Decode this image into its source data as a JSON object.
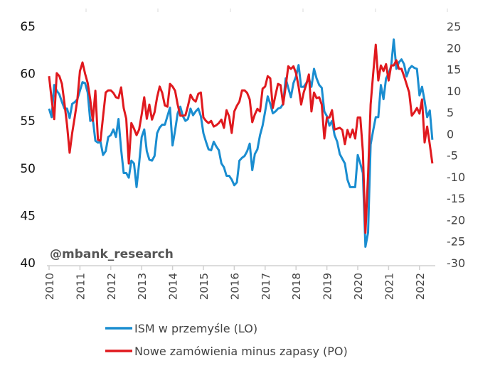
{
  "chart_data": {
    "type": "line",
    "title": "",
    "watermark": "@mbank_research",
    "x_start": "2010-01",
    "x_frequency": "monthly",
    "x_tick_labels": [
      "2010",
      "2011",
      "2012",
      "2013",
      "2014",
      "2015",
      "2016",
      "2017",
      "2018",
      "2019",
      "2020",
      "2021",
      "2022"
    ],
    "y_left": {
      "label": "",
      "ylim": [
        40,
        65
      ],
      "ticks": [
        "40",
        "45",
        "50",
        "55",
        "60",
        "65"
      ]
    },
    "y_right": {
      "label": "",
      "ylim": [
        -30,
        25
      ],
      "ticks": [
        "-30",
        "-25",
        "-20",
        "-15",
        "-10",
        "-5",
        "0",
        "5",
        "10",
        "15",
        "20",
        "25"
      ]
    },
    "grid": false,
    "legend_position": "bottom",
    "series": [
      {
        "name": "ISM w przemyśle (LO)",
        "axis": "left",
        "color": "#1a8dd0",
        "values": [
          56.3,
          55.4,
          58.8,
          58.2,
          57.8,
          57.0,
          56.3,
          56.3,
          55.3,
          56.8,
          57.0,
          57.3,
          58.2,
          59.1,
          59.0,
          58.0,
          55.0,
          55.2,
          52.9,
          52.7,
          52.8,
          51.4,
          51.8,
          53.3,
          53.5,
          54.1,
          53.3,
          55.2,
          52.0,
          49.5,
          49.5,
          49.0,
          50.8,
          50.5,
          48.0,
          50.5,
          53.3,
          54.1,
          51.8,
          50.9,
          50.8,
          51.3,
          53.7,
          54.3,
          54.6,
          54.6,
          55.5,
          56.4,
          52.4,
          54.0,
          55.8,
          56.5,
          55.5,
          55.0,
          55.2,
          56.3,
          55.6,
          56.0,
          56.3,
          55.5,
          53.7,
          52.8,
          52.0,
          51.9,
          52.8,
          52.3,
          51.9,
          50.5,
          50.1,
          49.2,
          49.2,
          48.8,
          48.2,
          48.5,
          50.8,
          51.1,
          51.3,
          51.8,
          52.6,
          49.8,
          51.5,
          52.0,
          53.5,
          54.5,
          56.0,
          57.6,
          56.8,
          55.8,
          56.0,
          56.3,
          56.4,
          56.8,
          59.5,
          58.5,
          57.5,
          59.0,
          59.7,
          60.9,
          58.6,
          58.6,
          59.0,
          59.5,
          58.6,
          60.5,
          59.5,
          58.8,
          58.5,
          56.0,
          55.5,
          54.5,
          55.0,
          53.5,
          52.8,
          51.5,
          51.0,
          50.5,
          48.8,
          48.0,
          48.0,
          48.0,
          51.4,
          50.5,
          49.5,
          41.7,
          43.2,
          52.5,
          54.0,
          55.4,
          55.4,
          58.8,
          57.3,
          59.5,
          60.0,
          60.8,
          63.6,
          60.5,
          61.2,
          61.5,
          61.0,
          59.7,
          60.5,
          60.8,
          60.6,
          60.5,
          57.7,
          58.6,
          57.1,
          55.4,
          56.1,
          53.0
        ]
      },
      {
        "name": "Nowe zamówienia minus zapasy (PO)",
        "axis": "right",
        "color": "#e0191e",
        "values": [
          13.4,
          8.0,
          3.4,
          14.1,
          13.4,
          11.6,
          7.0,
          2.0,
          -4.4,
          0.2,
          4.0,
          8.0,
          14.6,
          16.6,
          14.0,
          11.8,
          8.0,
          3.0,
          10.0,
          -1.4,
          -1.6,
          4.0,
          9.6,
          10.1,
          10.1,
          9.5,
          8.5,
          8.3,
          10.8,
          6.0,
          3.5,
          -6.9,
          2.5,
          1.2,
          -0.3,
          1.0,
          4.5,
          8.5,
          3.5,
          6.8,
          3.3,
          5.0,
          8.5,
          11.0,
          9.5,
          6.6,
          6.3,
          11.6,
          11.0,
          10.0,
          6.8,
          4.2,
          4.2,
          4.3,
          6.5,
          9.1,
          8.0,
          7.5,
          9.3,
          9.6,
          3.8,
          3.0,
          2.5,
          3.0,
          1.7,
          2.0,
          2.5,
          3.3,
          1.4,
          5.5,
          4.0,
          0.2,
          5.2,
          6.5,
          7.5,
          10.1,
          10.1,
          9.5,
          8.0,
          2.7,
          4.5,
          5.8,
          5.2,
          10.5,
          11.0,
          13.4,
          12.9,
          6.0,
          9.0,
          11.6,
          11.3,
          6.8,
          11.0,
          15.7,
          15.1,
          15.7,
          14.1,
          11.0,
          6.8,
          9.6,
          11.5,
          13.8,
          5.2,
          9.6,
          8.3,
          8.5,
          6.8,
          -1.1,
          3.8,
          3.8,
          5.5,
          1.0,
          1.2,
          1.4,
          0.9,
          -2.4,
          0.9,
          -0.8,
          1.0,
          -1.1,
          3.8,
          3.8,
          -4.1,
          -23.0,
          -9.7,
          6.8,
          14.0,
          20.7,
          12.4,
          15.9,
          14.6,
          16.2,
          12.4,
          15.9,
          15.9,
          17.1,
          15.1,
          15.1,
          13.4,
          11.5,
          9.6,
          4.2,
          5.0,
          6.0,
          4.7,
          8.0,
          -2.0,
          1.7,
          -2.5,
          -6.9
        ]
      }
    ]
  }
}
